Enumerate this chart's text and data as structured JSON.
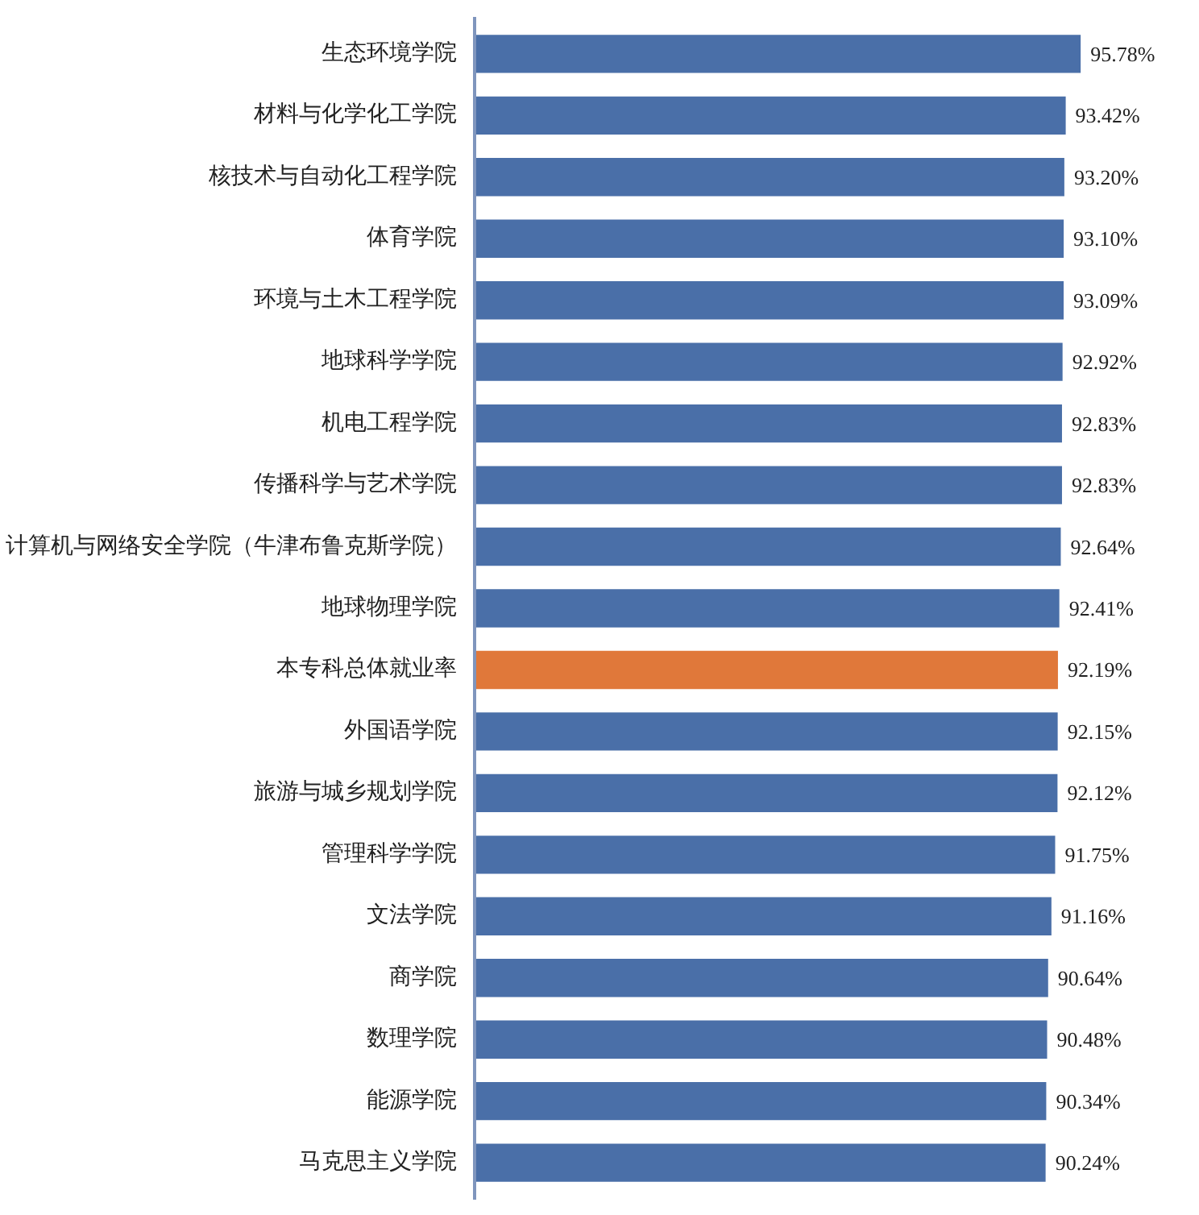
{
  "chart_data": {
    "type": "bar",
    "orientation": "horizontal",
    "data_labels": true,
    "categories": [
      "生态环境学院",
      "材料与化学化工学院",
      "核技术与自动化工程学院",
      "体育学院",
      "环境与土木工程学院",
      "地球科学学院",
      "机电工程学院",
      "传播科学与艺术学院",
      "计算机与网络安全学院（牛津布鲁克斯学院）",
      "地球物理学院",
      "本专科总体就业率",
      "外国语学院",
      "旅游与城乡规划学院",
      "管理科学学院",
      "文法学院",
      "商学院",
      "数理学院",
      "能源学院",
      "马克思主义学院"
    ],
    "values": [
      95.78,
      93.42,
      93.2,
      93.1,
      93.09,
      92.92,
      92.83,
      92.83,
      92.64,
      92.41,
      92.19,
      92.15,
      92.12,
      91.75,
      91.16,
      90.64,
      90.48,
      90.34,
      90.24
    ],
    "value_labels": [
      "95.78%",
      "93.42%",
      "93.20%",
      "93.10%",
      "93.09%",
      "92.92%",
      "92.83%",
      "92.83%",
      "92.64%",
      "92.41%",
      "92.19%",
      "92.15%",
      "92.12%",
      "91.75%",
      "91.16%",
      "90.64%",
      "90.48%",
      "90.34%",
      "90.24%"
    ],
    "colors": [
      "#4a6fa8",
      "#4a6fa8",
      "#4a6fa8",
      "#4a6fa8",
      "#4a6fa8",
      "#4a6fa8",
      "#4a6fa8",
      "#4a6fa8",
      "#4a6fa8",
      "#4a6fa8",
      "#e0783a",
      "#4a6fa8",
      "#4a6fa8",
      "#4a6fa8",
      "#4a6fa8",
      "#4a6fa8",
      "#4a6fa8",
      "#4a6fa8",
      "#4a6fa8"
    ]
  }
}
